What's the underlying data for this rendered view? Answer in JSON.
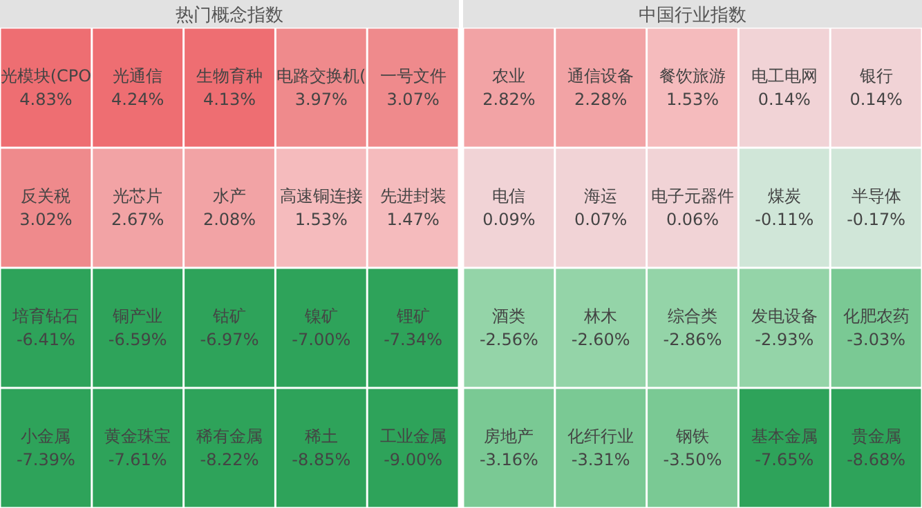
{
  "chart_data": [
    {
      "type": "other",
      "title": "热门概念指数",
      "categories": [
        "光模块(CPO",
        "光通信",
        "生物育种",
        "电路交换机(",
        "一号文件",
        "反关税",
        "光芯片",
        "水产",
        "高速铜连接",
        "先进封装",
        "培育钻石",
        "铜产业",
        "钴矿",
        "镍矿",
        "锂矿",
        "小金属",
        "黄金珠宝",
        "稀有金属",
        "稀土",
        "工业金属"
      ],
      "values": [
        4.83,
        4.24,
        4.13,
        3.97,
        3.07,
        3.02,
        2.67,
        2.08,
        1.53,
        1.47,
        -6.41,
        -6.59,
        -6.97,
        -7.0,
        -7.34,
        -7.39,
        -7.61,
        -8.22,
        -8.85,
        -9.0
      ],
      "value_labels": [
        "4.83%",
        "4.24%",
        "4.13%",
        "3.97%",
        "3.07%",
        "3.02%",
        "2.67%",
        "2.08%",
        "1.53%",
        "1.47%",
        "-6.41%",
        "-6.59%",
        "-6.97%",
        "-7.00%",
        "-7.34%",
        "-7.39%",
        "-7.61%",
        "-8.22%",
        "-8.85%",
        "-9.00%"
      ]
    },
    {
      "type": "other",
      "title": "中国行业指数",
      "categories": [
        "农业",
        "通信设备",
        "餐饮旅游",
        "电工电网",
        "银行",
        "电信",
        "海运",
        "电子元器件",
        "煤炭",
        "半导体",
        "酒类",
        "林木",
        "综合类",
        "发电设备",
        "化肥农药",
        "房地产",
        "化纤行业",
        "钢铁",
        "基本金属",
        "贵金属"
      ],
      "values": [
        2.82,
        2.28,
        1.53,
        0.14,
        0.14,
        0.09,
        0.07,
        0.06,
        -0.11,
        -0.17,
        -2.56,
        -2.6,
        -2.86,
        -2.93,
        -3.03,
        -3.16,
        -3.31,
        -3.5,
        -7.65,
        -8.68
      ],
      "value_labels": [
        "2.82%",
        "2.28%",
        "1.53%",
        "0.14%",
        "0.14%",
        "0.09%",
        "0.07%",
        "0.06%",
        "-0.11%",
        "-0.17%",
        "-2.56%",
        "-2.60%",
        "-2.86%",
        "-2.93%",
        "-3.03%",
        "-3.16%",
        "-3.31%",
        "-3.50%",
        "-7.65%",
        "-8.68%"
      ]
    }
  ]
}
